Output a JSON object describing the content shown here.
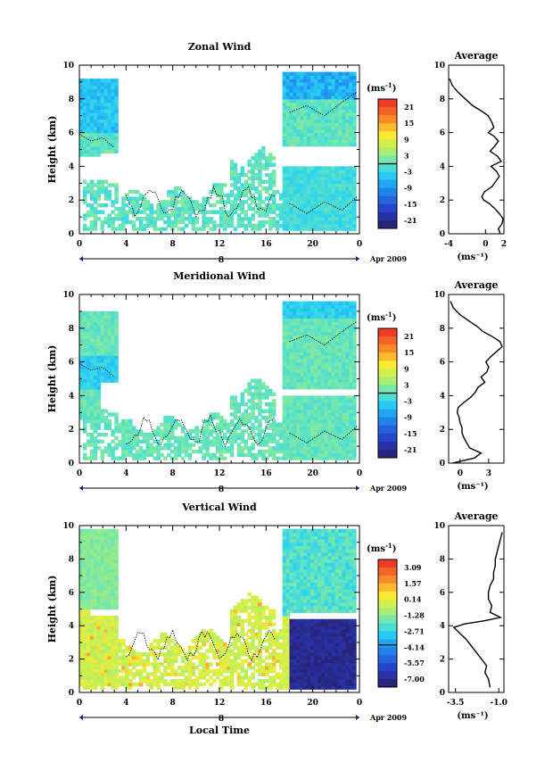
{
  "xlabel": "Local Time",
  "date_label": "Apr 2009",
  "colorbar_unit": "(ms",
  "colorbar_unit_sup": "-1",
  "colorbar_unit_end": ")",
  "x_ticks": [
    "0",
    "4",
    "8",
    "12",
    "16",
    "20",
    "0"
  ],
  "day_label": "8",
  "ylabel": "Height (km)",
  "y_ticks": [
    "0",
    "2",
    "4",
    "6",
    "8",
    "10"
  ],
  "avg_title": "Average",
  "chart_data": [
    {
      "type": "heatmap",
      "title": "Zonal Wind",
      "xlim": [
        0,
        24
      ],
      "ylim": [
        0,
        10
      ],
      "colorbar_ticks": [
        "21",
        "15",
        "9",
        "3",
        "-3",
        "-9",
        "-15",
        "-21"
      ],
      "colorbar_range": [
        -24,
        24
      ],
      "average": {
        "title": "Average",
        "xlabel": "(ms⁻¹)",
        "x_ticks": [
          "-4",
          "0",
          "2"
        ],
        "xlim": [
          -4,
          2
        ],
        "profile": [
          [
            0.0,
            1.6
          ],
          [
            0.3,
            1.4
          ],
          [
            0.6,
            1.8
          ],
          [
            0.9,
            1.9
          ],
          [
            1.2,
            1.5
          ],
          [
            1.5,
            1.0
          ],
          [
            1.8,
            0.4
          ],
          [
            2.0,
            -0.2
          ],
          [
            2.2,
            -0.4
          ],
          [
            2.5,
            -0.1
          ],
          [
            2.8,
            0.7
          ],
          [
            3.1,
            1.1
          ],
          [
            3.4,
            1.5
          ],
          [
            3.7,
            1.2
          ],
          [
            4.0,
            0.6
          ],
          [
            4.3,
            1.7
          ],
          [
            4.6,
            1.3
          ],
          [
            4.9,
            0.5
          ],
          [
            5.2,
            1.0
          ],
          [
            5.5,
            1.4
          ],
          [
            5.8,
            0.9
          ],
          [
            6.0,
            0.3
          ],
          [
            6.3,
            0.9
          ],
          [
            6.6,
            0.7
          ],
          [
            7.0,
            0.3
          ],
          [
            7.3,
            -0.5
          ],
          [
            7.6,
            -1.4
          ],
          [
            8.0,
            -2.2
          ],
          [
            8.4,
            -3.0
          ],
          [
            8.8,
            -3.6
          ],
          [
            9.2,
            -3.9
          ]
        ]
      }
    },
    {
      "type": "heatmap",
      "title": "Meridional Wind",
      "xlim": [
        0,
        24
      ],
      "ylim": [
        0,
        10
      ],
      "colorbar_ticks": [
        "21",
        "15",
        "9",
        "3",
        "-3",
        "-9",
        "-15",
        "-21"
      ],
      "colorbar_range": [
        -24,
        24
      ],
      "average": {
        "title": "Average",
        "xlabel": "(ms⁻¹)",
        "x_ticks": [
          "0",
          "3"
        ],
        "xlim": [
          -1.2,
          4.6
        ],
        "profile": [
          [
            0.0,
            -0.8
          ],
          [
            0.3,
            1.5
          ],
          [
            0.6,
            2.2
          ],
          [
            0.9,
            1.0
          ],
          [
            1.2,
            0.7
          ],
          [
            1.5,
            0.4
          ],
          [
            1.8,
            0.2
          ],
          [
            2.1,
            0.2
          ],
          [
            2.4,
            0.0
          ],
          [
            2.7,
            -0.1
          ],
          [
            3.0,
            -0.3
          ],
          [
            3.3,
            -0.2
          ],
          [
            3.6,
            0.4
          ],
          [
            3.9,
            1.1
          ],
          [
            4.2,
            1.6
          ],
          [
            4.5,
            1.9
          ],
          [
            4.8,
            2.6
          ],
          [
            5.1,
            2.2
          ],
          [
            5.4,
            2.8
          ],
          [
            5.7,
            3.0
          ],
          [
            6.0,
            2.7
          ],
          [
            6.3,
            3.2
          ],
          [
            6.6,
            3.8
          ],
          [
            6.9,
            4.4
          ],
          [
            7.2,
            4.2
          ],
          [
            7.5,
            3.4
          ],
          [
            7.8,
            2.4
          ],
          [
            8.1,
            1.8
          ],
          [
            8.4,
            1.0
          ],
          [
            8.8,
            0.0
          ],
          [
            9.2,
            -0.7
          ],
          [
            9.6,
            -1.0
          ]
        ]
      }
    },
    {
      "type": "heatmap",
      "title": "Vertical Wind",
      "xlim": [
        0,
        24
      ],
      "ylim": [
        0,
        10
      ],
      "colorbar_ticks": [
        "3.09",
        "1.57",
        "0.14",
        "-1.28",
        "-2.71",
        "-4.14",
        "-5.57",
        "-7.00"
      ],
      "colorbar_range": [
        -7.7,
        3.8
      ],
      "average": {
        "title": "Average",
        "xlabel": "(ms⁻¹)",
        "x_ticks": [
          "-3.5",
          "-1.0"
        ],
        "xlim": [
          -3.9,
          -0.7
        ],
        "profile": [
          [
            0.3,
            -1.5
          ],
          [
            0.8,
            -1.6
          ],
          [
            1.2,
            -1.8
          ],
          [
            1.6,
            -1.7
          ],
          [
            2.0,
            -2.0
          ],
          [
            2.4,
            -2.3
          ],
          [
            2.8,
            -2.6
          ],
          [
            3.2,
            -2.9
          ],
          [
            3.6,
            -3.3
          ],
          [
            3.9,
            -3.6
          ],
          [
            4.1,
            -3.0
          ],
          [
            4.3,
            -1.8
          ],
          [
            4.5,
            -0.9
          ],
          [
            4.8,
            -1.5
          ],
          [
            5.2,
            -1.4
          ],
          [
            5.6,
            -1.6
          ],
          [
            6.0,
            -1.6
          ],
          [
            6.4,
            -1.5
          ],
          [
            6.8,
            -1.3
          ],
          [
            7.2,
            -1.3
          ],
          [
            7.6,
            -1.2
          ],
          [
            8.0,
            -1.2
          ],
          [
            8.4,
            -1.1
          ],
          [
            8.8,
            -1.0
          ],
          [
            9.2,
            -0.9
          ],
          [
            9.6,
            -0.8
          ]
        ]
      }
    }
  ]
}
